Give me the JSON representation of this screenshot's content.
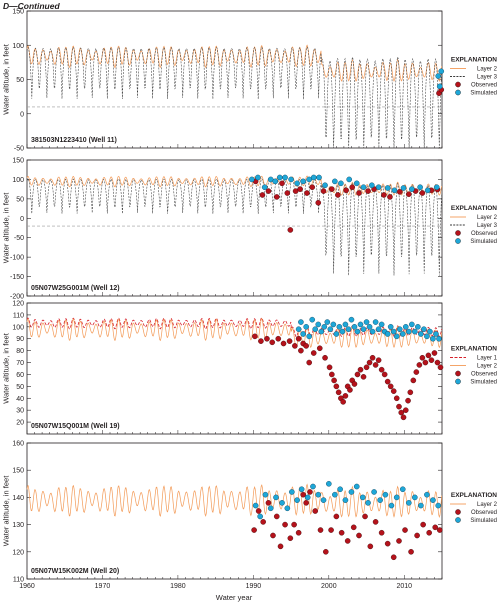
{
  "header": "D—Continued",
  "xlabel": "Water year",
  "ylabel": "Water altitude, in feet",
  "colors": {
    "layer1": "#d6202a",
    "layer2": "#f39a57",
    "layer3": "#3a3a3a",
    "observed": "#b5121b",
    "simulated": "#1ea7d8",
    "reference_line": "#9a9a9a"
  },
  "chart_data": [
    {
      "type": "line",
      "panel_label": "381503N1223410 (Well 11)",
      "xlim": [
        1960,
        2015
      ],
      "ylim": [
        -50,
        150
      ],
      "x_ticks": [
        1960,
        1970,
        1980,
        1990,
        2000,
        2010
      ],
      "y_ticks": [
        -50,
        0,
        50,
        100,
        150
      ],
      "reference_line_y": 10,
      "legend": {
        "title": "EXPLANATION",
        "placement": "right",
        "entries": [
          {
            "label": "Layer 2",
            "kind": "line-layer2"
          },
          {
            "label": "Layer 3",
            "kind": "line-layer3"
          },
          {
            "label": "Observed",
            "kind": "observed"
          },
          {
            "label": "Simulated",
            "kind": "simulated"
          }
        ]
      },
      "series": [
        {
          "name": "Layer 2",
          "role": "layer2",
          "base_early": 84,
          "amp_early": 14,
          "base_late": 62,
          "amp_late": 14,
          "break_year": 1999
        },
        {
          "name": "Layer 3",
          "role": "layer3",
          "high_early": 96,
          "low_early": 20,
          "high_late": 80,
          "low_late": -70,
          "break_year": 1999
        }
      ],
      "observed": [
        [
          2014.6,
          30
        ],
        [
          2014.9,
          35
        ]
      ],
      "simulated": [
        [
          2014.5,
          55
        ],
        [
          2014.7,
          40
        ],
        [
          2014.9,
          62
        ]
      ]
    },
    {
      "type": "line",
      "panel_label": "05N07W25G001M (Well 12)",
      "xlim": [
        1960,
        2015
      ],
      "ylim": [
        -200,
        150
      ],
      "x_ticks": [
        1960,
        1970,
        1980,
        1990,
        2000,
        2010
      ],
      "y_ticks": [
        -200,
        -150,
        -100,
        -50,
        0,
        50,
        100,
        150
      ],
      "reference_line_y": -20,
      "legend": {
        "title": "EXPLANATION",
        "placement": "right",
        "entries": [
          {
            "label": "Layer 2",
            "kind": "line-layer2"
          },
          {
            "label": "Layer 3",
            "kind": "line-layer3"
          },
          {
            "label": "Observed",
            "kind": "observed"
          },
          {
            "label": "Simulated",
            "kind": "simulated"
          }
        ]
      },
      "series": [
        {
          "name": "Layer 2",
          "role": "layer2",
          "base_early": 95,
          "amp_early": 12,
          "base_late": 75,
          "amp_late": 15,
          "break_year": 1999
        },
        {
          "name": "Layer 3",
          "role": "layer3",
          "high_early": 100,
          "low_early": 10,
          "high_late": 85,
          "low_late": -150,
          "break_year": 1999
        }
      ],
      "observed": [
        [
          1990.3,
          95
        ],
        [
          1991.2,
          60
        ],
        [
          1992.0,
          70
        ],
        [
          1993.1,
          55
        ],
        [
          1993.8,
          90
        ],
        [
          1994.5,
          65
        ],
        [
          1994.9,
          -30
        ],
        [
          1995.6,
          70
        ],
        [
          1996.2,
          75
        ],
        [
          1997.1,
          65
        ],
        [
          1997.8,
          80
        ],
        [
          1998.6,
          40
        ],
        [
          1999.3,
          70
        ],
        [
          2000.4,
          75
        ],
        [
          2001.2,
          60
        ],
        [
          2002.3,
          72
        ],
        [
          2003.1,
          80
        ],
        [
          2004.0,
          65
        ],
        [
          2005.2,
          70
        ],
        [
          2006.0,
          75
        ],
        [
          2007.3,
          60
        ],
        [
          2008.1,
          55
        ],
        [
          2009.4,
          68
        ],
        [
          2010.6,
          62
        ],
        [
          2011.5,
          70
        ],
        [
          2012.4,
          65
        ],
        [
          2013.6,
          72
        ],
        [
          2014.4,
          74
        ]
      ],
      "simulated": [
        [
          1989.8,
          100
        ],
        [
          1990.6,
          105
        ],
        [
          1991.5,
          80
        ],
        [
          1992.3,
          100
        ],
        [
          1992.9,
          95
        ],
        [
          1993.5,
          105
        ],
        [
          1994.2,
          105
        ],
        [
          1995.0,
          100
        ],
        [
          1995.8,
          90
        ],
        [
          1996.6,
          95
        ],
        [
          1997.4,
          100
        ],
        [
          1998.0,
          105
        ],
        [
          1998.7,
          105
        ],
        [
          1999.5,
          85
        ],
        [
          2000.8,
          95
        ],
        [
          2001.6,
          90
        ],
        [
          2002.7,
          100
        ],
        [
          2003.7,
          90
        ],
        [
          2004.6,
          80
        ],
        [
          2005.7,
          85
        ],
        [
          2006.6,
          80
        ],
        [
          2007.8,
          78
        ],
        [
          2008.7,
          72
        ],
        [
          2009.9,
          78
        ],
        [
          2011.0,
          75
        ],
        [
          2012.1,
          80
        ],
        [
          2013.1,
          72
        ],
        [
          2014.3,
          80
        ]
      ]
    },
    {
      "type": "line",
      "panel_label": "05N07W15Q001M (Well 19)",
      "xlim": [
        1960,
        2015
      ],
      "ylim": [
        10,
        120
      ],
      "x_ticks": [
        1960,
        1970,
        1980,
        1990,
        2000,
        2010
      ],
      "y_ticks": [
        20,
        30,
        40,
        50,
        60,
        70,
        80,
        90,
        100,
        110,
        120
      ],
      "legend": {
        "title": "EXPLANATION",
        "placement": "right",
        "entries": [
          {
            "label": "Layer 1",
            "kind": "line-layer1"
          },
          {
            "label": "Layer 2",
            "kind": "line-layer2"
          },
          {
            "label": "Observed",
            "kind": "observed"
          },
          {
            "label": "Simulated",
            "kind": "simulated"
          }
        ]
      },
      "series": [
        {
          "name": "Layer 1",
          "role": "layer1",
          "base_early": 103,
          "amp_early": 4,
          "base_late": 96,
          "amp_late": 4,
          "break_year": 1995
        },
        {
          "name": "Layer 2",
          "role": "layer2",
          "base_early": 98,
          "amp_early": 8,
          "base_late": 91,
          "amp_late": 8,
          "break_year": 1995
        }
      ],
      "observed": [
        [
          1990.2,
          92
        ],
        [
          1991.0,
          88
        ],
        [
          1991.8,
          90
        ],
        [
          1992.5,
          87
        ],
        [
          1993.3,
          90
        ],
        [
          1994.0,
          86
        ],
        [
          1994.8,
          88
        ],
        [
          1995.5,
          84
        ],
        [
          1996.0,
          90
        ],
        [
          1996.3,
          80
        ],
        [
          1996.6,
          86
        ],
        [
          1997.0,
          84
        ],
        [
          1997.4,
          70
        ],
        [
          1998.0,
          78
        ],
        [
          1998.8,
          82
        ],
        [
          1999.5,
          74
        ],
        [
          2000.1,
          66
        ],
        [
          2000.4,
          60
        ],
        [
          2000.7,
          55
        ],
        [
          2001.0,
          50
        ],
        [
          2001.3,
          45
        ],
        [
          2001.6,
          40
        ],
        [
          2001.9,
          37
        ],
        [
          2002.2,
          42
        ],
        [
          2002.5,
          50
        ],
        [
          2002.8,
          47
        ],
        [
          2003.1,
          55
        ],
        [
          2003.4,
          52
        ],
        [
          2003.8,
          60
        ],
        [
          2004.2,
          64
        ],
        [
          2004.6,
          58
        ],
        [
          2005.0,
          66
        ],
        [
          2005.4,
          70
        ],
        [
          2005.8,
          74
        ],
        [
          2006.2,
          68
        ],
        [
          2006.6,
          72
        ],
        [
          2007.0,
          64
        ],
        [
          2007.4,
          60
        ],
        [
          2007.8,
          54
        ],
        [
          2008.2,
          50
        ],
        [
          2008.6,
          46
        ],
        [
          2009.0,
          40
        ],
        [
          2009.3,
          33
        ],
        [
          2009.6,
          28
        ],
        [
          2009.9,
          24
        ],
        [
          2010.2,
          30
        ],
        [
          2010.5,
          38
        ],
        [
          2010.8,
          45
        ],
        [
          2011.2,
          55
        ],
        [
          2011.6,
          62
        ],
        [
          2012.0,
          68
        ],
        [
          2012.4,
          74
        ],
        [
          2012.8,
          70
        ],
        [
          2013.2,
          76
        ],
        [
          2013.6,
          72
        ],
        [
          2014.0,
          78
        ],
        [
          2014.4,
          70
        ],
        [
          2014.8,
          66
        ]
      ],
      "simulated": [
        [
          1996.0,
          98
        ],
        [
          1996.3,
          104
        ],
        [
          1996.6,
          94
        ],
        [
          1997.0,
          100
        ],
        [
          1997.4,
          92
        ],
        [
          1997.8,
          106
        ],
        [
          1998.2,
          98
        ],
        [
          1998.6,
          102
        ],
        [
          1999.0,
          96
        ],
        [
          1999.4,
          100
        ],
        [
          1999.8,
          104
        ],
        [
          2000.2,
          98
        ],
        [
          2000.6,
          102
        ],
        [
          2001.0,
          94
        ],
        [
          2001.4,
          100
        ],
        [
          2001.8,
          96
        ],
        [
          2002.2,
          102
        ],
        [
          2002.6,
          98
        ],
        [
          2003.0,
          106
        ],
        [
          2003.4,
          100
        ],
        [
          2003.8,
          96
        ],
        [
          2004.2,
          102
        ],
        [
          2004.6,
          98
        ],
        [
          2005.0,
          104
        ],
        [
          2005.4,
          100
        ],
        [
          2005.8,
          96
        ],
        [
          2006.2,
          104
        ],
        [
          2006.6,
          98
        ],
        [
          2007.0,
          102
        ],
        [
          2007.4,
          96
        ],
        [
          2007.8,
          94
        ],
        [
          2008.2,
          100
        ],
        [
          2008.6,
          96
        ],
        [
          2009.0,
          92
        ],
        [
          2009.4,
          98
        ],
        [
          2009.8,
          94
        ],
        [
          2010.2,
          100
        ],
        [
          2010.6,
          96
        ],
        [
          2011.0,
          102
        ],
        [
          2011.4,
          96
        ],
        [
          2011.8,
          100
        ],
        [
          2012.2,
          94
        ],
        [
          2012.6,
          98
        ],
        [
          2013.0,
          92
        ],
        [
          2013.4,
          96
        ],
        [
          2013.8,
          90
        ],
        [
          2014.2,
          94
        ],
        [
          2014.6,
          90
        ]
      ]
    },
    {
      "type": "line",
      "panel_label": "05N07W15K002M (Well 20)",
      "xlim": [
        1960,
        2015
      ],
      "ylim": [
        110,
        160
      ],
      "x_ticks": [
        1960,
        1970,
        1980,
        1990,
        2000,
        2010
      ],
      "x_tick_labels": [
        "1960",
        "1970",
        "1980",
        "1990",
        "2000",
        "2010"
      ],
      "y_ticks": [
        110,
        120,
        130,
        140,
        150,
        160
      ],
      "legend": {
        "title": "EXPLANATION",
        "placement": "right",
        "entries": [
          {
            "label": "Layer 2",
            "kind": "line-layer2"
          },
          {
            "label": "Observed",
            "kind": "observed"
          },
          {
            "label": "Simulated",
            "kind": "simulated"
          }
        ]
      },
      "series": [
        {
          "name": "Layer 2",
          "role": "layer2",
          "base_early": 139,
          "amp_early": 5,
          "base_late": 138,
          "amp_late": 5,
          "break_year": 1999
        }
      ],
      "observed": [
        [
          1990.1,
          128
        ],
        [
          1990.7,
          135
        ],
        [
          1991.3,
          131
        ],
        [
          1992.0,
          138
        ],
        [
          1992.6,
          126
        ],
        [
          1993.1,
          133
        ],
        [
          1993.6,
          122
        ],
        [
          1994.2,
          130
        ],
        [
          1994.9,
          125
        ],
        [
          1995.4,
          130
        ],
        [
          1996.0,
          127
        ],
        [
          1996.6,
          141
        ],
        [
          1997.0,
          138
        ],
        [
          1997.5,
          142
        ],
        [
          1998.2,
          135
        ],
        [
          1998.9,
          128
        ],
        [
          1999.6,
          120
        ],
        [
          2000.3,
          128
        ],
        [
          2001.0,
          133
        ],
        [
          2001.7,
          127
        ],
        [
          2002.5,
          124
        ],
        [
          2003.3,
          129
        ],
        [
          2004.0,
          126
        ],
        [
          2004.8,
          133
        ],
        [
          2005.5,
          122
        ],
        [
          2006.2,
          131
        ],
        [
          2007.0,
          127
        ],
        [
          2007.8,
          123
        ],
        [
          2008.6,
          118
        ],
        [
          2009.3,
          124
        ],
        [
          2010.1,
          128
        ],
        [
          2010.9,
          120
        ],
        [
          2011.7,
          126
        ],
        [
          2012.5,
          130
        ],
        [
          2013.3,
          127
        ],
        [
          2014.1,
          129
        ],
        [
          2014.7,
          128
        ]
      ],
      "simulated": [
        [
          1990.3,
          137
        ],
        [
          1990.9,
          133
        ],
        [
          1991.6,
          141
        ],
        [
          1992.3,
          136
        ],
        [
          1993.0,
          140
        ],
        [
          1993.8,
          138
        ],
        [
          1994.5,
          136
        ],
        [
          1995.1,
          142
        ],
        [
          1995.8,
          139
        ],
        [
          1996.4,
          143
        ],
        [
          1997.2,
          140
        ],
        [
          1997.9,
          144
        ],
        [
          1998.6,
          141
        ],
        [
          1999.3,
          139
        ],
        [
          2000.0,
          145
        ],
        [
          2000.8,
          141
        ],
        [
          2001.5,
          143
        ],
        [
          2002.2,
          139
        ],
        [
          2003.0,
          142
        ],
        [
          2003.7,
          144
        ],
        [
          2004.5,
          140
        ],
        [
          2005.2,
          138
        ],
        [
          2006.0,
          142
        ],
        [
          2006.8,
          139
        ],
        [
          2007.5,
          141
        ],
        [
          2008.3,
          137
        ],
        [
          2009.0,
          140
        ],
        [
          2009.8,
          143
        ],
        [
          2010.6,
          138
        ],
        [
          2011.4,
          140
        ],
        [
          2012.2,
          137
        ],
        [
          2013.0,
          141
        ],
        [
          2013.8,
          139
        ],
        [
          2014.5,
          137
        ]
      ]
    }
  ]
}
